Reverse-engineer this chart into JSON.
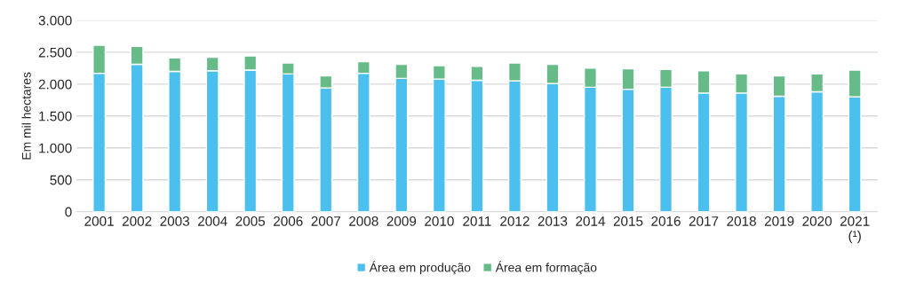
{
  "chart_data": {
    "type": "bar",
    "stacked": true,
    "ylabel": "Em mil hectares",
    "categories": [
      "2001",
      "2002",
      "2003",
      "2004",
      "2005",
      "2006",
      "2007",
      "2008",
      "2009",
      "2010",
      "2011",
      "2012",
      "2013",
      "2014",
      "2015",
      "2016",
      "2017",
      "2018",
      "2019",
      "2020",
      "2021\n(¹)"
    ],
    "series": [
      {
        "name": "Área em produção",
        "color": "#4bc0ee",
        "values": [
          2170,
          2310,
          2200,
          2210,
          2220,
          2160,
          1940,
          2170,
          2090,
          2080,
          2060,
          2050,
          2010,
          1950,
          1920,
          1950,
          1860,
          1860,
          1810,
          1880,
          1800
        ]
      },
      {
        "name": "Área em formação",
        "color": "#66bb88",
        "values": [
          440,
          280,
          210,
          210,
          220,
          170,
          190,
          180,
          220,
          210,
          220,
          280,
          300,
          300,
          320,
          280,
          350,
          300,
          320,
          280,
          420
        ]
      }
    ],
    "ylim": [
      0,
      3000
    ],
    "yticks": [
      0,
      500,
      {
        "value": 1000,
        "label": "1.000"
      },
      {
        "value": 1500,
        "label": "1.500"
      },
      {
        "value": 2000,
        "label": "2.000"
      },
      {
        "value": 2500,
        "label": "2.500"
      },
      {
        "value": 3000,
        "label": "3.000"
      }
    ],
    "grid": "y",
    "legend": "bottom"
  }
}
